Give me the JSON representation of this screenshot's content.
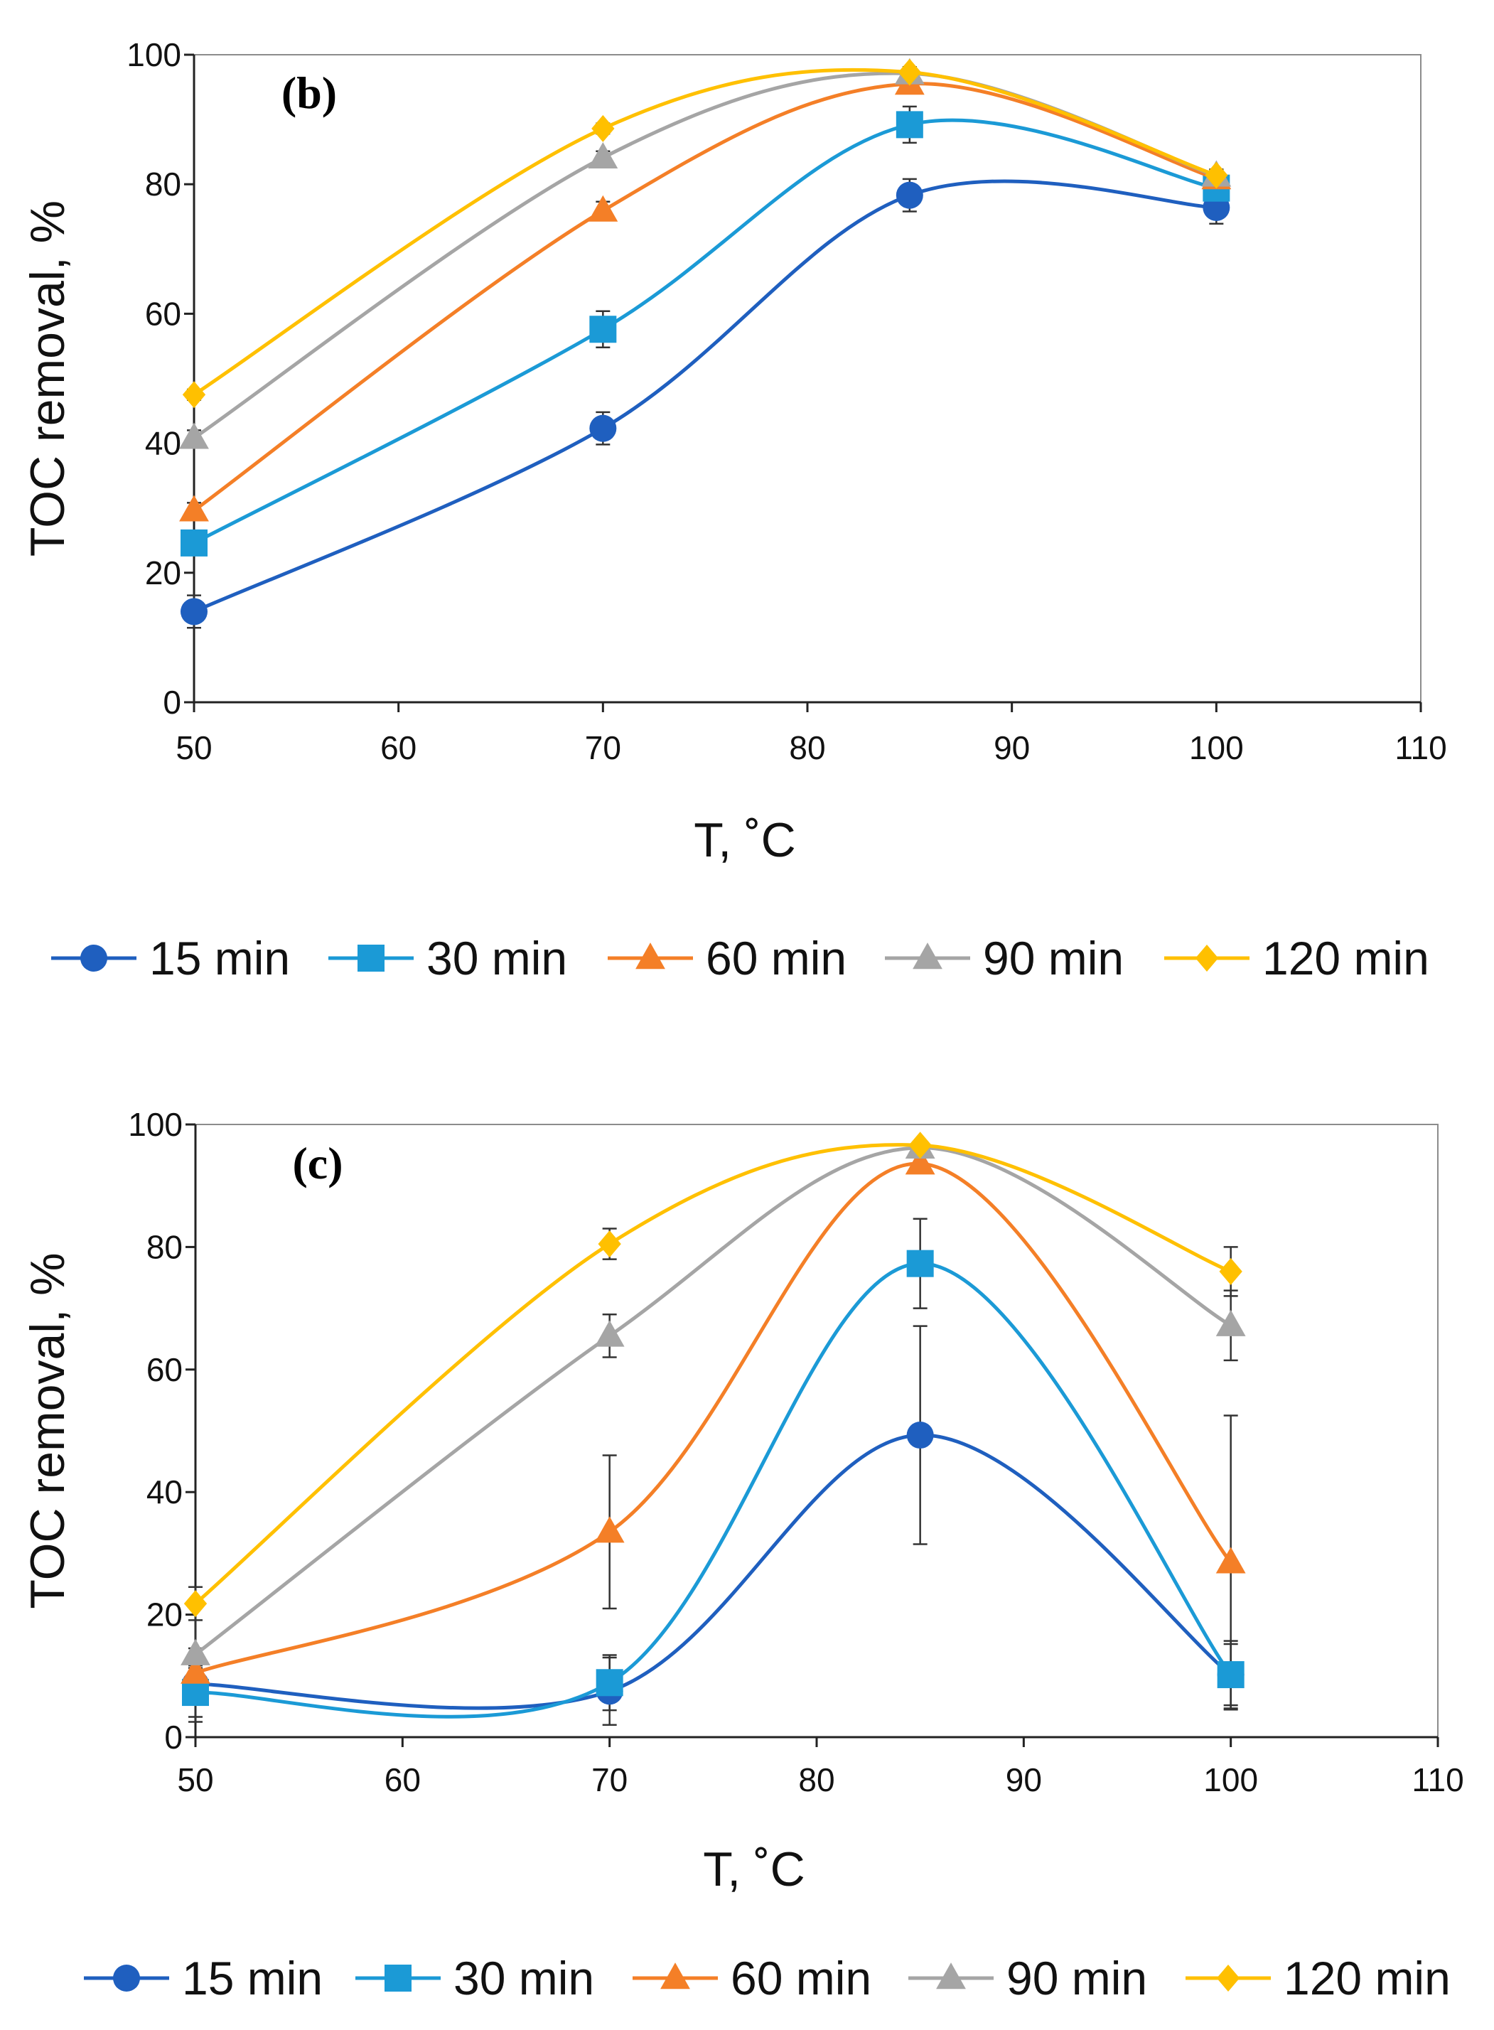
{
  "chart_data": [
    {
      "type": "line",
      "panel_label": "(b)",
      "xlabel": "T, ˚C",
      "ylabel": "TOC removal, %",
      "xlim": [
        50,
        110
      ],
      "ylim": [
        0,
        100
      ],
      "x_ticks": [
        50,
        60,
        70,
        80,
        90,
        100,
        110
      ],
      "y_ticks": [
        0,
        20,
        40,
        60,
        80,
        100
      ],
      "x": [
        50,
        70,
        85,
        100
      ],
      "legend_position": "bottom",
      "series": [
        {
          "name": "15 min",
          "marker": "circle",
          "color": "#1F5FBF",
          "values": [
            14,
            42.3,
            78.3,
            76.4
          ],
          "errors": [
            2.5,
            2.5,
            2.5,
            2.5
          ]
        },
        {
          "name": "30 min",
          "marker": "square",
          "color": "#1B9AD6",
          "values": [
            24.6,
            57.6,
            89.2,
            79.4
          ],
          "errors": [
            1.5,
            2.8,
            2.8,
            1.5
          ]
        },
        {
          "name": "60 min",
          "marker": "triangle",
          "color": "#F47F27",
          "values": [
            29.6,
            75.9,
            95.5,
            80.9
          ],
          "errors": [
            1.2,
            1.4,
            1.0,
            1.2
          ]
        },
        {
          "name": "90 min",
          "marker": "triangle",
          "color": "#A5A5A5",
          "values": [
            40.8,
            84.1,
            97.1,
            81.3
          ],
          "errors": [
            1.2,
            1.0,
            0.8,
            1.0
          ]
        },
        {
          "name": "120 min",
          "marker": "diamond",
          "color": "#FFC000",
          "values": [
            47.5,
            88.6,
            97.3,
            81.4
          ],
          "errors": [
            0.8,
            0.8,
            0.8,
            0.8
          ]
        }
      ]
    },
    {
      "type": "line",
      "panel_label": "(c)",
      "xlabel": "T, ˚C",
      "ylabel": "TOC removal, %",
      "xlim": [
        50,
        110
      ],
      "ylim": [
        0,
        100
      ],
      "x_ticks": [
        50,
        60,
        70,
        80,
        90,
        100,
        110
      ],
      "y_ticks": [
        0,
        20,
        40,
        60,
        80,
        100
      ],
      "x": [
        50,
        70,
        85,
        100
      ],
      "legend_position": "bottom",
      "series": [
        {
          "name": "15 min",
          "marker": "circle",
          "color": "#1F5FBF",
          "values": [
            8.7,
            7.5,
            49.3,
            10.2
          ],
          "errors": [
            3.0,
            5.5,
            17.8,
            5.0
          ]
        },
        {
          "name": "30 min",
          "marker": "square",
          "color": "#1B9AD6",
          "values": [
            7.3,
            8.9,
            77.3,
            10.2
          ],
          "errors": [
            4.0,
            4.5,
            7.3,
            5.5
          ]
        },
        {
          "name": "60 min",
          "marker": "triangle",
          "color": "#F47F27",
          "values": [
            10.5,
            33.5,
            93.6,
            28.5
          ],
          "errors": [
            4.0,
            12.5,
            1.2,
            24.0
          ]
        },
        {
          "name": "90 min",
          "marker": "triangle",
          "color": "#A5A5A5",
          "values": [
            13.5,
            65.5,
            96.2,
            67.2
          ],
          "errors": [
            11.0,
            3.5,
            0.8,
            5.7
          ]
        },
        {
          "name": "120 min",
          "marker": "diamond",
          "color": "#FFC000",
          "values": [
            21.8,
            80.5,
            96.6,
            76.0
          ],
          "errors": [
            2.7,
            2.5,
            0.6,
            4.0
          ]
        }
      ]
    }
  ]
}
